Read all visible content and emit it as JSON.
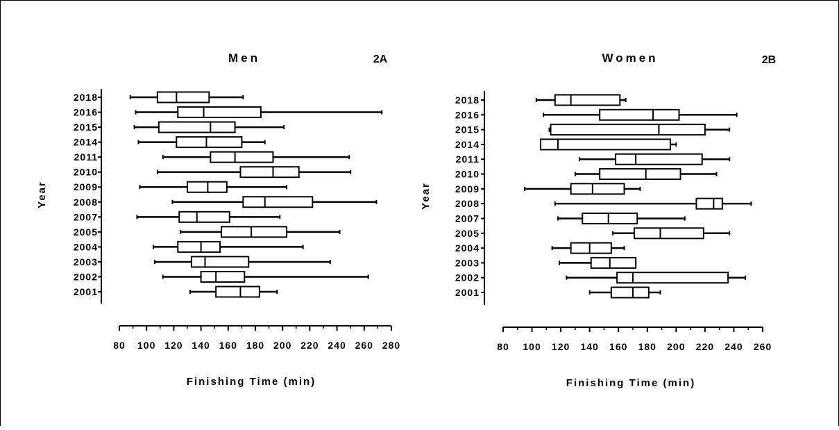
{
  "chart_data": [
    {
      "type": "boxplot",
      "title": "Men",
      "tag": "2A",
      "xlabel": "Finishing Time (min)",
      "ylabel": "Year",
      "xlim": [
        80,
        280
      ],
      "xticks": [
        80,
        100,
        120,
        140,
        160,
        180,
        200,
        220,
        240,
        260,
        280
      ],
      "grid": false,
      "categories": [
        "2018",
        "2016",
        "2015",
        "2014",
        "2011",
        "2010",
        "2009",
        "2008",
        "2007",
        "2005",
        "2004",
        "2003",
        "2002",
        "2001"
      ],
      "boxes": [
        {
          "min": 88,
          "q1": 108,
          "median": 122,
          "q3": 146,
          "max": 171
        },
        {
          "min": 92,
          "q1": 123,
          "median": 142,
          "q3": 184,
          "max": 273
        },
        {
          "min": 91,
          "q1": 109,
          "median": 147,
          "q3": 165,
          "max": 201
        },
        {
          "min": 94,
          "q1": 122,
          "median": 144,
          "q3": 170,
          "max": 187
        },
        {
          "min": 112,
          "q1": 147,
          "median": 165,
          "q3": 193,
          "max": 249
        },
        {
          "min": 108,
          "q1": 169,
          "median": 193,
          "q3": 212,
          "max": 250
        },
        {
          "min": 95,
          "q1": 130,
          "median": 145,
          "q3": 159,
          "max": 203
        },
        {
          "min": 119,
          "q1": 171,
          "median": 187,
          "q3": 222,
          "max": 269
        },
        {
          "min": 93,
          "q1": 124,
          "median": 137,
          "q3": 161,
          "max": 198
        },
        {
          "min": 125,
          "q1": 155,
          "median": 177,
          "q3": 203,
          "max": 242
        },
        {
          "min": 105,
          "q1": 123,
          "median": 140,
          "q3": 154,
          "max": 215
        },
        {
          "min": 106,
          "q1": 133,
          "median": 143,
          "q3": 175,
          "max": 235
        },
        {
          "min": 112,
          "q1": 140,
          "median": 151,
          "q3": 172,
          "max": 263
        },
        {
          "min": 132,
          "q1": 151,
          "median": 169,
          "q3": 183,
          "max": 196
        }
      ]
    },
    {
      "type": "boxplot",
      "title": "Women",
      "tag": "2B",
      "xlabel": "Finishing Time (min)",
      "ylabel": "Year",
      "xlim": [
        80,
        260
      ],
      "xticks": [
        80,
        100,
        120,
        140,
        160,
        180,
        200,
        220,
        240,
        260
      ],
      "grid": false,
      "categories": [
        "2018",
        "2016",
        "2015",
        "2014",
        "2011",
        "2010",
        "2009",
        "2008",
        "2007",
        "2005",
        "2004",
        "2003",
        "2002",
        "2001"
      ],
      "boxes": [
        {
          "min": 103,
          "q1": 116,
          "median": 127,
          "q3": 161,
          "max": 165
        },
        {
          "min": 108,
          "q1": 147,
          "median": 184,
          "q3": 202,
          "max": 242
        },
        {
          "min": 112,
          "q1": 113,
          "median": 188,
          "q3": 220,
          "max": 237
        },
        {
          "min": 106,
          "q1": 106,
          "median": 118,
          "q3": 196,
          "max": 200
        },
        {
          "min": 133,
          "q1": 158,
          "median": 172,
          "q3": 218,
          "max": 237
        },
        {
          "min": 130,
          "q1": 147,
          "median": 179,
          "q3": 203,
          "max": 228
        },
        {
          "min": 95,
          "q1": 127,
          "median": 142,
          "q3": 164,
          "max": 175
        },
        {
          "min": 116,
          "q1": 214,
          "median": 226,
          "q3": 232,
          "max": 252
        },
        {
          "min": 118,
          "q1": 135,
          "median": 153,
          "q3": 173,
          "max": 206
        },
        {
          "min": 156,
          "q1": 171,
          "median": 189,
          "q3": 219,
          "max": 237
        },
        {
          "min": 114,
          "q1": 127,
          "median": 140,
          "q3": 155,
          "max": 164
        },
        {
          "min": 119,
          "q1": 141,
          "median": 154,
          "q3": 172,
          "max": 172
        },
        {
          "min": 124,
          "q1": 159,
          "median": 170,
          "q3": 236,
          "max": 248
        },
        {
          "min": 140,
          "q1": 155,
          "median": 170,
          "q3": 181,
          "max": 189
        }
      ]
    }
  ]
}
